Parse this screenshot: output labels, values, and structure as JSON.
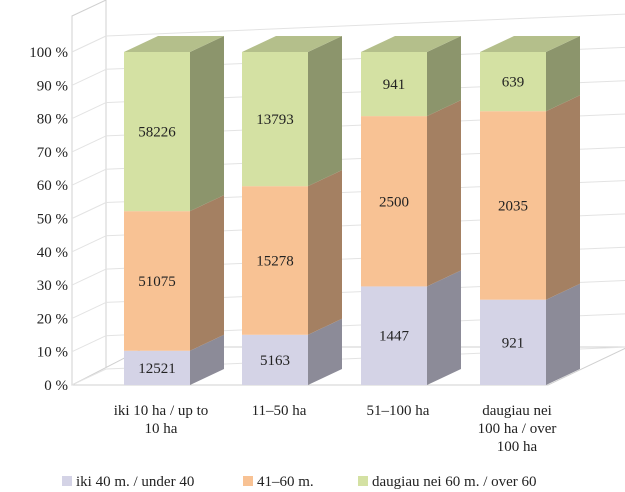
{
  "chart_data": {
    "type": "bar",
    "stacked": "percent",
    "three_d": true,
    "categories": [
      [
        "iki 10 ha / up to",
        "10 ha"
      ],
      [
        "11–50 ha"
      ],
      [
        "51–100 ha"
      ],
      [
        "daugiau nei",
        "100 ha / over",
        "100 ha"
      ]
    ],
    "series": [
      {
        "name": "iki 40 m. / under 40",
        "values": [
          12521,
          5163,
          1447,
          921
        ],
        "color": "#d4d3e6"
      },
      {
        "name": "41–60 m.",
        "values": [
          51075,
          15278,
          2500,
          2035
        ],
        "color": "#f8c294"
      },
      {
        "name": "daugiau nei 60 m. / over 60",
        "values": [
          58226,
          13793,
          941,
          639
        ],
        "color": "#d4e1a3"
      }
    ],
    "y_ticks": [
      "0 %",
      "10 %",
      "20 %",
      "30 %",
      "40 %",
      "50 %",
      "60 %",
      "70 %",
      "80 %",
      "90 %",
      "100 %"
    ],
    "ylim": [
      0,
      100
    ],
    "grid": true,
    "legend_position": "bottom"
  }
}
